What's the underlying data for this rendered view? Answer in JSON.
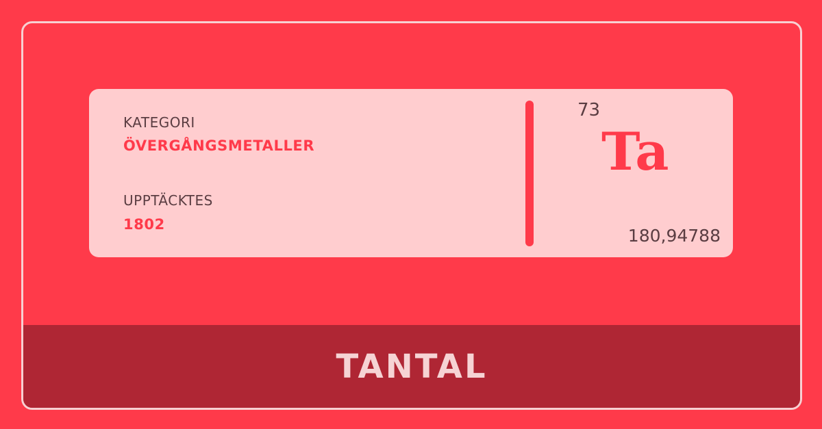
{
  "element": {
    "category_label": "KATEGORI",
    "category_value": "ÖVERGÅNGSMETALLER",
    "discovered_label": "UPPTÄCKTES",
    "discovered_value": "1802",
    "atomic_number": "73",
    "symbol": "Ta",
    "atomic_mass": "180,94788",
    "name": "TANTAL"
  },
  "colors": {
    "background": "#ff3a4a",
    "card": "#ffcdcf",
    "banner": "#af2634",
    "accent": "#ff3a4a",
    "text_dark": "#5a3d42",
    "banner_text": "#f6d3d4"
  }
}
